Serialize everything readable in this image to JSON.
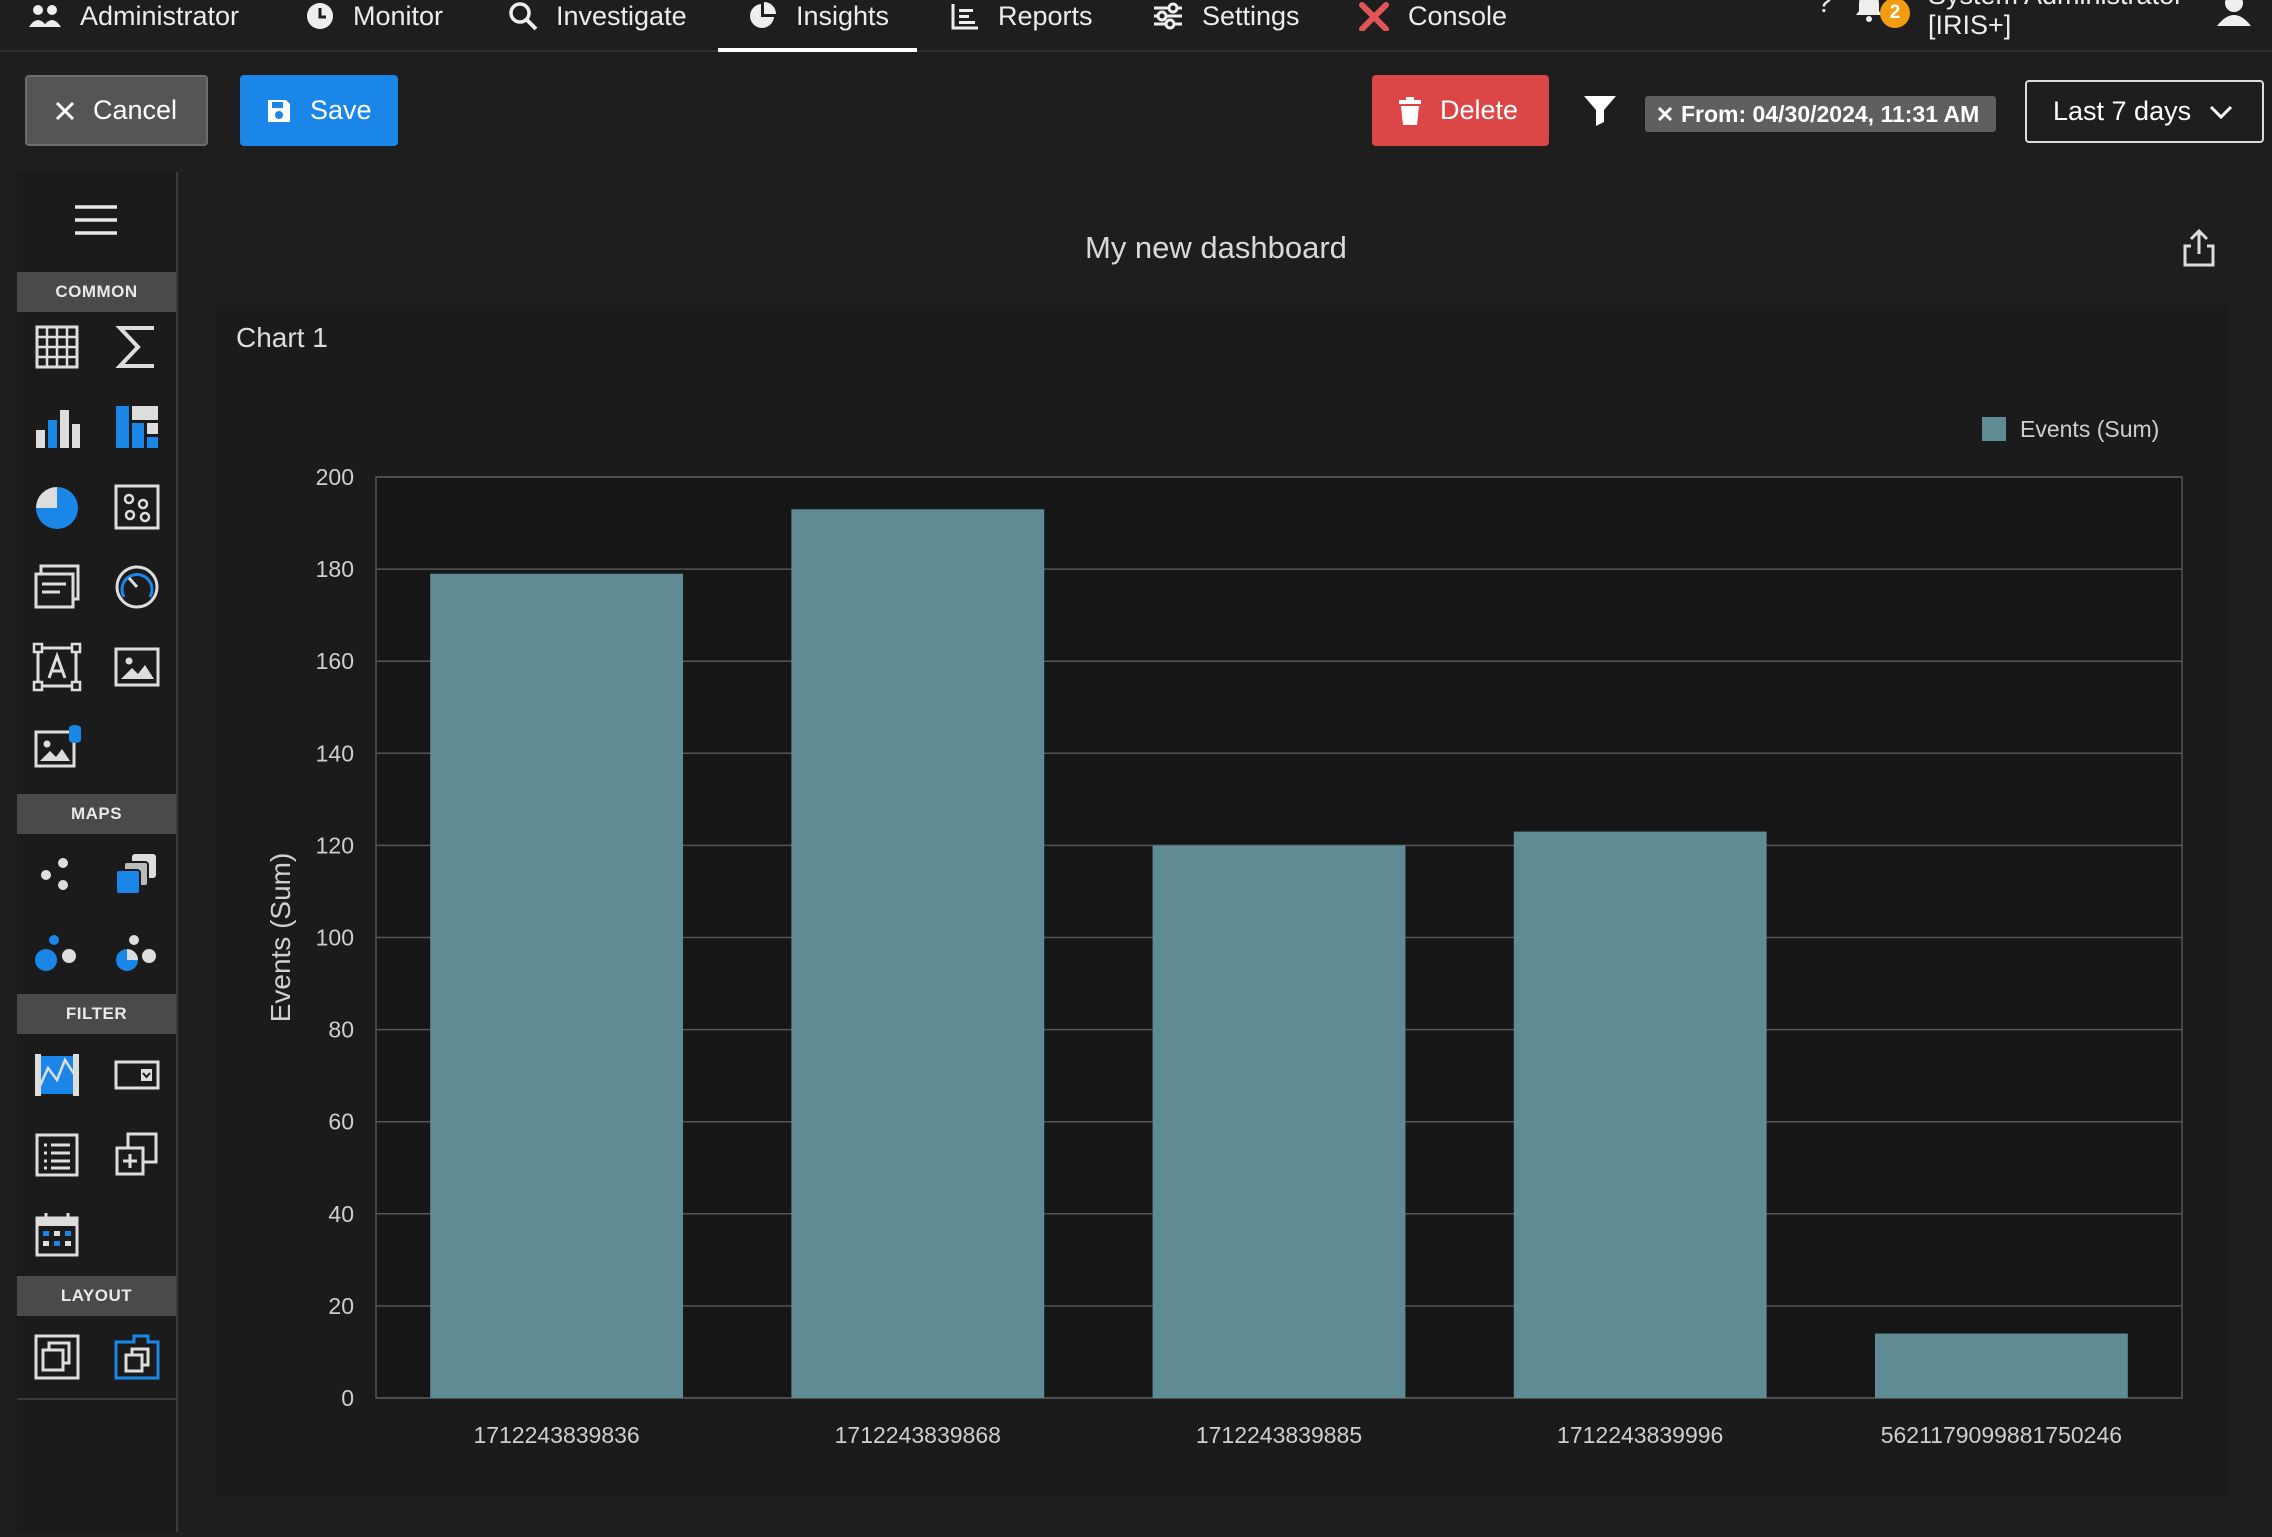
{
  "nav": {
    "items": [
      {
        "label": "Administrator"
      },
      {
        "label": "Monitor"
      },
      {
        "label": "Investigate"
      },
      {
        "label": "Insights"
      },
      {
        "label": "Reports"
      },
      {
        "label": "Settings"
      },
      {
        "label": "Console"
      }
    ],
    "active": "Insights",
    "help": "?",
    "notifications": "2",
    "user_name": "System Administrator",
    "user_role": "[IRIS+]"
  },
  "toolbar": {
    "cancel_label": "Cancel",
    "save_label": "Save",
    "delete_label": "Delete",
    "filter_chip": "From: 04/30/2024, 11:31 AM",
    "range_value": "Last 7 days"
  },
  "palette": {
    "sections": {
      "common": "COMMON",
      "maps": "MAPS",
      "filter": "FILTER",
      "layout": "LAYOUT"
    }
  },
  "dashboard": {
    "title": "My new dashboard",
    "chart_title": "Chart 1"
  },
  "colors": {
    "bar": "#5e8b94",
    "accent": "#1a86e8",
    "danger": "#dc4646",
    "badge": "#f39c12"
  },
  "chart_data": {
    "type": "bar",
    "categories": [
      "1712243839836",
      "1712243839868",
      "1712243839885",
      "1712243839996",
      "5621179099881750246"
    ],
    "series": [
      {
        "name": "Events (Sum)",
        "values": [
          179,
          193,
          120,
          123,
          14
        ]
      }
    ],
    "ylabel": "Events (Sum)",
    "xlabel": "",
    "ylim": [
      0,
      200
    ],
    "yticks": [
      0,
      20,
      40,
      60,
      80,
      100,
      120,
      140,
      160,
      180,
      200
    ],
    "grid": true,
    "legend": "top-right"
  }
}
